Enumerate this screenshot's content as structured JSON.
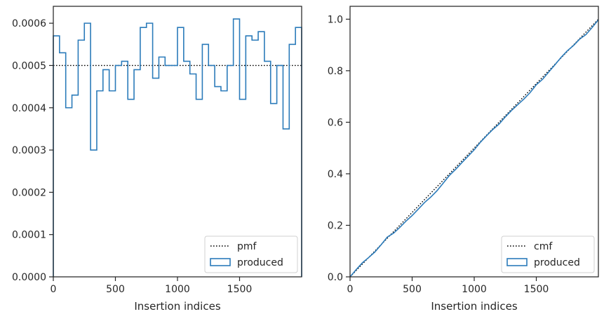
{
  "chart_data": [
    {
      "type": "line",
      "xlabel": "Insertion indices",
      "ylabel": "",
      "xlim": [
        0,
        2000
      ],
      "ylim": [
        0,
        0.00064
      ],
      "xticks": [
        "0",
        "500",
        "1000",
        "1500"
      ],
      "xtick_values": [
        0,
        500,
        1000,
        1500
      ],
      "yticks": [
        "0.0000",
        "0.0001",
        "0.0002",
        "0.0003",
        "0.0004",
        "0.0005",
        "0.0006"
      ],
      "ytick_values": [
        0,
        0.0001,
        0.0002,
        0.0003,
        0.0004,
        0.0005,
        0.0006
      ],
      "legend_position": "bottom-right",
      "series": [
        {
          "name": "pmf",
          "style": "dotted",
          "color": "#000000",
          "x": [
            0,
            2000
          ],
          "values": [
            0.0005,
            0.0005
          ]
        },
        {
          "name": "produced",
          "style": "step-histogram",
          "color": "#2b7bba",
          "bin_edges": [
            0,
            50,
            100,
            150,
            200,
            250,
            300,
            350,
            400,
            450,
            500,
            550,
            600,
            650,
            700,
            750,
            800,
            850,
            900,
            950,
            1000,
            1050,
            1100,
            1150,
            1200,
            1250,
            1300,
            1350,
            1400,
            1450,
            1500,
            1550,
            1600,
            1650,
            1700,
            1750,
            1800,
            1850,
            1900,
            1950,
            2000
          ],
          "values": [
            0.00057,
            0.00053,
            0.0004,
            0.00043,
            0.00056,
            0.0006,
            0.0003,
            0.00044,
            0.00049,
            0.00044,
            0.0005,
            0.00051,
            0.00042,
            0.00049,
            0.00059,
            0.0006,
            0.00047,
            0.00052,
            0.0005,
            0.0005,
            0.00059,
            0.00051,
            0.00048,
            0.00042,
            0.00055,
            0.0005,
            0.00045,
            0.00044,
            0.0005,
            0.00061,
            0.00042,
            0.00057,
            0.00056,
            0.00058,
            0.00051,
            0.00041,
            0.0005,
            0.00035,
            0.00055,
            0.00059
          ]
        }
      ]
    },
    {
      "type": "line",
      "xlabel": "Insertion indices",
      "ylabel": "",
      "xlim": [
        0,
        2000
      ],
      "ylim": [
        0,
        1.05
      ],
      "xticks": [
        "0",
        "500",
        "1000",
        "1500"
      ],
      "xtick_values": [
        0,
        500,
        1000,
        1500
      ],
      "yticks": [
        "0.0",
        "0.2",
        "0.4",
        "0.6",
        "0.8",
        "1.0"
      ],
      "ytick_values": [
        0,
        0.2,
        0.4,
        0.6,
        0.8,
        1.0
      ],
      "legend_position": "bottom-right",
      "series": [
        {
          "name": "cmf",
          "style": "dotted",
          "color": "#000000",
          "x": [
            0,
            2000
          ],
          "values": [
            0,
            1
          ]
        },
        {
          "name": "produced",
          "style": "line",
          "color": "#2b7bba",
          "x": [
            0,
            50,
            100,
            150,
            200,
            250,
            300,
            350,
            400,
            450,
            500,
            550,
            600,
            650,
            700,
            750,
            800,
            850,
            900,
            950,
            1000,
            1050,
            1100,
            1150,
            1200,
            1250,
            1300,
            1350,
            1400,
            1450,
            1500,
            1550,
            1600,
            1650,
            1700,
            1750,
            1800,
            1850,
            1900,
            1950,
            2000
          ],
          "values": [
            0,
            0.0285,
            0.055,
            0.075,
            0.0965,
            0.1245,
            0.1545,
            0.1695,
            0.1915,
            0.216,
            0.238,
            0.263,
            0.2885,
            0.3095,
            0.334,
            0.3635,
            0.3935,
            0.417,
            0.443,
            0.468,
            0.493,
            0.5225,
            0.548,
            0.572,
            0.593,
            0.6205,
            0.6455,
            0.668,
            0.69,
            0.715,
            0.7455,
            0.7665,
            0.795,
            0.823,
            0.852,
            0.8775,
            0.898,
            0.923,
            0.9405,
            0.968,
            0.9975
          ]
        }
      ]
    }
  ]
}
